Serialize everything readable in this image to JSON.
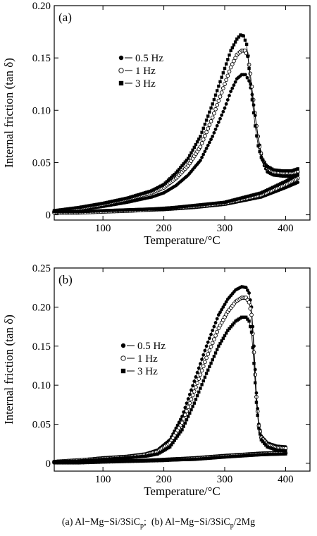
{
  "caption": {
    "a_letter": "(a)",
    "a_text": "Al−Mg−Si/3SiC",
    "a_sub": "p",
    "sep": ";",
    "b_letter": "(b)",
    "b_text": "Al−Mg−Si/3SiC",
    "b_sub": "p",
    "b_tail": "/2Mg"
  },
  "chart_data": [
    {
      "type": "scatter",
      "panel_label": "(a)",
      "xlabel": "Temperature/°C",
      "ylabel": "Internal friction (tan δ)",
      "xlim": [
        20,
        440
      ],
      "ylim": [
        -0.005,
        0.2
      ],
      "xticks": [
        100,
        200,
        300,
        400
      ],
      "yticks": [
        0,
        0.05,
        0.1,
        0.15,
        0.2
      ],
      "ytick_labels": [
        "0",
        "0.05",
        "0.10",
        "0.15",
        "0.20"
      ],
      "legend": [
        {
          "label": "0.5 Hz",
          "marker": "filled-circle"
        },
        {
          "label": "1 Hz",
          "marker": "open-circle"
        },
        {
          "label": "3 Hz",
          "marker": "filled-square"
        }
      ],
      "series": [
        {
          "name": "0.5 Hz",
          "marker": "filled-circle",
          "heating": [
            [
              20,
              0.003
            ],
            [
              60,
              0.005
            ],
            [
              100,
              0.008
            ],
            [
              140,
              0.012
            ],
            [
              180,
              0.017
            ],
            [
              200,
              0.021
            ],
            [
              220,
              0.028
            ],
            [
              240,
              0.038
            ],
            [
              260,
              0.052
            ],
            [
              280,
              0.075
            ],
            [
              300,
              0.102
            ],
            [
              310,
              0.118
            ],
            [
              320,
              0.13
            ],
            [
              328,
              0.134
            ],
            [
              334,
              0.134
            ],
            [
              340,
              0.128
            ],
            [
              345,
              0.115
            ],
            [
              350,
              0.095
            ],
            [
              355,
              0.075
            ],
            [
              360,
              0.058
            ],
            [
              365,
              0.047
            ],
            [
              370,
              0.041
            ],
            [
              380,
              0.038
            ],
            [
              395,
              0.037
            ],
            [
              410,
              0.037
            ],
            [
              420,
              0.038
            ]
          ],
          "cooling": [
            [
              420,
              0.031
            ],
            [
              400,
              0.026
            ],
            [
              360,
              0.017
            ],
            [
              300,
              0.01
            ],
            [
              250,
              0.007
            ],
            [
              200,
              0.005
            ],
            [
              150,
              0.004
            ],
            [
              100,
              0.003
            ],
            [
              60,
              0.002
            ],
            [
              20,
              0.002
            ]
          ]
        },
        {
          "name": "1 Hz",
          "marker": "open-circle",
          "heating": [
            [
              20,
              0.003
            ],
            [
              60,
              0.006
            ],
            [
              100,
              0.01
            ],
            [
              140,
              0.015
            ],
            [
              180,
              0.021
            ],
            [
              200,
              0.026
            ],
            [
              220,
              0.035
            ],
            [
              240,
              0.047
            ],
            [
              260,
              0.065
            ],
            [
              280,
              0.093
            ],
            [
              300,
              0.125
            ],
            [
              310,
              0.141
            ],
            [
              320,
              0.153
            ],
            [
              328,
              0.157
            ],
            [
              333,
              0.157
            ],
            [
              338,
              0.152
            ],
            [
              342,
              0.135
            ],
            [
              347,
              0.11
            ],
            [
              352,
              0.085
            ],
            [
              357,
              0.065
            ],
            [
              362,
              0.053
            ],
            [
              370,
              0.045
            ],
            [
              380,
              0.041
            ],
            [
              395,
              0.04
            ],
            [
              410,
              0.04
            ],
            [
              420,
              0.041
            ]
          ],
          "cooling": [
            [
              420,
              0.035
            ],
            [
              400,
              0.029
            ],
            [
              360,
              0.019
            ],
            [
              300,
              0.011
            ],
            [
              250,
              0.008
            ],
            [
              200,
              0.006
            ],
            [
              150,
              0.004
            ],
            [
              100,
              0.003
            ],
            [
              60,
              0.002
            ],
            [
              20,
              0.002
            ]
          ]
        },
        {
          "name": "3 Hz",
          "marker": "filled-square",
          "heating": [
            [
              20,
              0.004
            ],
            [
              60,
              0.007
            ],
            [
              100,
              0.011
            ],
            [
              140,
              0.016
            ],
            [
              180,
              0.023
            ],
            [
              200,
              0.029
            ],
            [
              220,
              0.04
            ],
            [
              240,
              0.054
            ],
            [
              260,
              0.075
            ],
            [
              280,
              0.106
            ],
            [
              300,
              0.14
            ],
            [
              310,
              0.157
            ],
            [
              320,
              0.168
            ],
            [
              326,
              0.172
            ],
            [
              331,
              0.171
            ],
            [
              336,
              0.163
            ],
            [
              340,
              0.14
            ],
            [
              345,
              0.11
            ],
            [
              350,
              0.085
            ],
            [
              355,
              0.066
            ],
            [
              360,
              0.055
            ],
            [
              368,
              0.047
            ],
            [
              380,
              0.043
            ],
            [
              395,
              0.042
            ],
            [
              410,
              0.042
            ],
            [
              420,
              0.044
            ]
          ],
          "cooling": [
            [
              420,
              0.039
            ],
            [
              400,
              0.032
            ],
            [
              360,
              0.021
            ],
            [
              300,
              0.012
            ],
            [
              250,
              0.009
            ],
            [
              200,
              0.006
            ],
            [
              150,
              0.005
            ],
            [
              100,
              0.004
            ],
            [
              60,
              0.003
            ],
            [
              20,
              0.003
            ]
          ]
        }
      ]
    },
    {
      "type": "scatter",
      "panel_label": "(b)",
      "xlabel": "Temperature/°C",
      "ylabel": "Internal friction (tan δ)",
      "xlim": [
        20,
        440
      ],
      "ylim": [
        -0.01,
        0.25
      ],
      "xticks": [
        100,
        200,
        300,
        400
      ],
      "yticks": [
        0,
        0.05,
        0.1,
        0.15,
        0.2,
        0.25
      ],
      "ytick_labels": [
        "0",
        "0.05",
        "0.10",
        "0.15",
        "0.20",
        "0.25"
      ],
      "legend": [
        {
          "label": "0.5 Hz",
          "marker": "filled-circle"
        },
        {
          "label": "1 Hz",
          "marker": "open-circle"
        },
        {
          "label": "3 Hz",
          "marker": "filled-square"
        }
      ],
      "series": [
        {
          "name": "0.5 Hz",
          "marker": "filled-circle",
          "heating": [
            [
              20,
              0.002
            ],
            [
              60,
              0.004
            ],
            [
              100,
              0.007
            ],
            [
              140,
              0.009
            ],
            [
              170,
              0.012
            ],
            [
              190,
              0.017
            ],
            [
              210,
              0.03
            ],
            [
              230,
              0.06
            ],
            [
              250,
              0.105
            ],
            [
              270,
              0.15
            ],
            [
              290,
              0.19
            ],
            [
              305,
              0.21
            ],
            [
              318,
              0.222
            ],
            [
              328,
              0.226
            ],
            [
              335,
              0.225
            ],
            [
              340,
              0.218
            ],
            [
              344,
              0.2
            ],
            [
              348,
              0.15
            ],
            [
              352,
              0.09
            ],
            [
              356,
              0.05
            ],
            [
              360,
              0.035
            ],
            [
              370,
              0.026
            ],
            [
              385,
              0.022
            ],
            [
              400,
              0.021
            ]
          ],
          "cooling": [
            [
              400,
              0.014
            ],
            [
              360,
              0.013
            ],
            [
              300,
              0.01
            ],
            [
              250,
              0.007
            ],
            [
              200,
              0.005
            ],
            [
              150,
              0.003
            ],
            [
              100,
              0.002
            ],
            [
              60,
              0.001
            ],
            [
              20,
              0.001
            ]
          ]
        },
        {
          "name": "1 Hz",
          "marker": "open-circle",
          "heating": [
            [
              20,
              0.002
            ],
            [
              60,
              0.004
            ],
            [
              100,
              0.006
            ],
            [
              140,
              0.008
            ],
            [
              170,
              0.011
            ],
            [
              190,
              0.015
            ],
            [
              210,
              0.026
            ],
            [
              230,
              0.052
            ],
            [
              250,
              0.092
            ],
            [
              270,
              0.135
            ],
            [
              290,
              0.173
            ],
            [
              305,
              0.194
            ],
            [
              318,
              0.207
            ],
            [
              328,
              0.212
            ],
            [
              335,
              0.212
            ],
            [
              340,
              0.206
            ],
            [
              344,
              0.19
            ],
            [
              348,
              0.142
            ],
            [
              352,
              0.085
            ],
            [
              356,
              0.048
            ],
            [
              360,
              0.033
            ],
            [
              370,
              0.024
            ],
            [
              385,
              0.02
            ],
            [
              400,
              0.019
            ]
          ],
          "cooling": [
            [
              400,
              0.013
            ],
            [
              360,
              0.012
            ],
            [
              300,
              0.009
            ],
            [
              250,
              0.006
            ],
            [
              200,
              0.004
            ],
            [
              150,
              0.003
            ],
            [
              100,
              0.002
            ],
            [
              60,
              0.001
            ],
            [
              20,
              0.001
            ]
          ]
        },
        {
          "name": "3 Hz",
          "marker": "filled-square",
          "heating": [
            [
              20,
              0.002
            ],
            [
              60,
              0.003
            ],
            [
              100,
              0.005
            ],
            [
              140,
              0.007
            ],
            [
              170,
              0.009
            ],
            [
              190,
              0.012
            ],
            [
              210,
              0.021
            ],
            [
              230,
              0.043
            ],
            [
              250,
              0.077
            ],
            [
              270,
              0.115
            ],
            [
              290,
              0.15
            ],
            [
              305,
              0.17
            ],
            [
              318,
              0.182
            ],
            [
              328,
              0.187
            ],
            [
              335,
              0.187
            ],
            [
              340,
              0.182
            ],
            [
              344,
              0.168
            ],
            [
              348,
              0.128
            ],
            [
              352,
              0.078
            ],
            [
              356,
              0.045
            ],
            [
              360,
              0.03
            ],
            [
              370,
              0.021
            ],
            [
              385,
              0.017
            ],
            [
              400,
              0.016
            ]
          ],
          "cooling": [
            [
              400,
              0.012
            ],
            [
              360,
              0.011
            ],
            [
              300,
              0.008
            ],
            [
              250,
              0.005
            ],
            [
              200,
              0.004
            ],
            [
              150,
              0.003
            ],
            [
              100,
              0.002
            ],
            [
              60,
              0.001
            ],
            [
              20,
              0.001
            ]
          ]
        }
      ]
    }
  ]
}
